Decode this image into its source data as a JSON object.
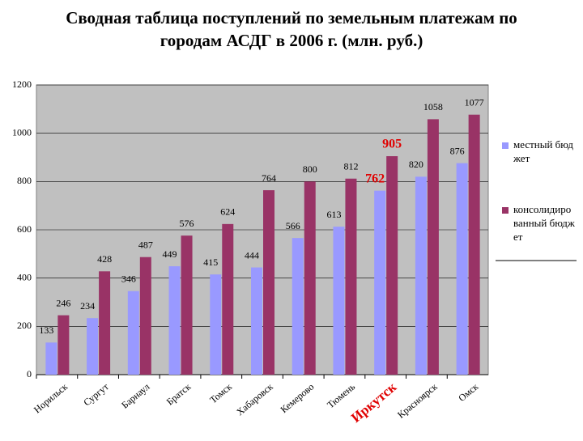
{
  "chart_data": {
    "type": "bar",
    "title": "Сводная таблица поступлений по земельным платежам по городам АСДГ в 2006 г. (млн. руб.)",
    "categories": [
      "Норильск",
      "Сургут",
      "Барнаул",
      "Братск",
      "Томск",
      "Хабаровск",
      "Кемерово",
      "Тюмень",
      "Иркутск",
      "Красноярск",
      "Омск"
    ],
    "series": [
      {
        "name": "местный бюджет",
        "color": "#9999ff",
        "values": [
          133,
          234,
          346,
          449,
          415,
          444,
          566,
          613,
          762,
          820,
          876
        ]
      },
      {
        "name": "консолидированный бюджет",
        "color": "#993366",
        "values": [
          246,
          428,
          487,
          576,
          624,
          764,
          800,
          812,
          905,
          1058,
          1077
        ]
      }
    ],
    "ylim": [
      0,
      1200
    ],
    "yticks": [
      0,
      200,
      400,
      600,
      800,
      1000,
      1200
    ],
    "grid": true,
    "plot_background": "#c0c0c0",
    "legend": "right",
    "highlighted_categories": [
      "Иркутск"
    ],
    "highlight_color": "#e00000"
  }
}
